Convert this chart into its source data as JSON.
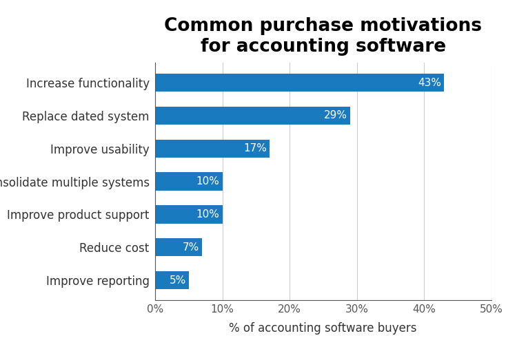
{
  "title": "Common purchase motivations\nfor accounting software",
  "categories": [
    "Improve reporting",
    "Reduce cost",
    "Improve product support",
    "Consolidate multiple systems",
    "Improve usability",
    "Replace dated system",
    "Increase functionality"
  ],
  "values": [
    5,
    7,
    10,
    10,
    17,
    29,
    43
  ],
  "bar_color": "#1a7abf",
  "label_color": "#ffffff",
  "xlabel": "% of accounting software buyers",
  "xlim": [
    0,
    50
  ],
  "xticks": [
    0,
    10,
    20,
    30,
    40,
    50
  ],
  "xtick_labels": [
    "0%",
    "10%",
    "20%",
    "30%",
    "40%",
    "50%"
  ],
  "title_fontsize": 19,
  "label_fontsize": 11,
  "xlabel_fontsize": 12,
  "ytick_fontsize": 12,
  "xtick_fontsize": 11,
  "background_color": "#ffffff",
  "bar_height": 0.55
}
